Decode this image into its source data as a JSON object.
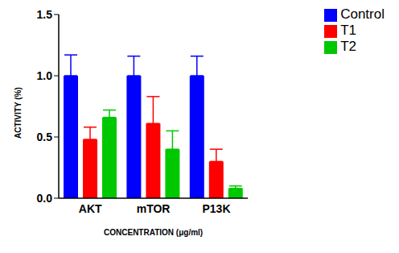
{
  "chart_data": {
    "type": "bar",
    "x_label": "CONCENTRATION (μg/ml)",
    "y_label": "ACTIVITY (%)",
    "categories": [
      "AKT",
      "mTOR",
      "P13K"
    ],
    "series": [
      {
        "name": "Control",
        "color": "#0000ff",
        "values": [
          1.0,
          1.0,
          1.0
        ],
        "errors": [
          0.17,
          0.16,
          0.16
        ]
      },
      {
        "name": "T1",
        "color": "#ff0000",
        "values": [
          0.48,
          0.61,
          0.3
        ],
        "errors": [
          0.1,
          0.22,
          0.1
        ]
      },
      {
        "name": "T2",
        "color": "#00c800",
        "values": [
          0.66,
          0.4,
          0.08
        ],
        "errors": [
          0.06,
          0.15,
          0.02
        ]
      }
    ],
    "ylim": [
      0,
      1.5
    ],
    "yticks": [
      {
        "value": 0,
        "label": "0.0"
      },
      0.5,
      {
        "value": 1,
        "label": "1.0"
      },
      1.5
    ],
    "legend": "upper right",
    "grid": false
  }
}
